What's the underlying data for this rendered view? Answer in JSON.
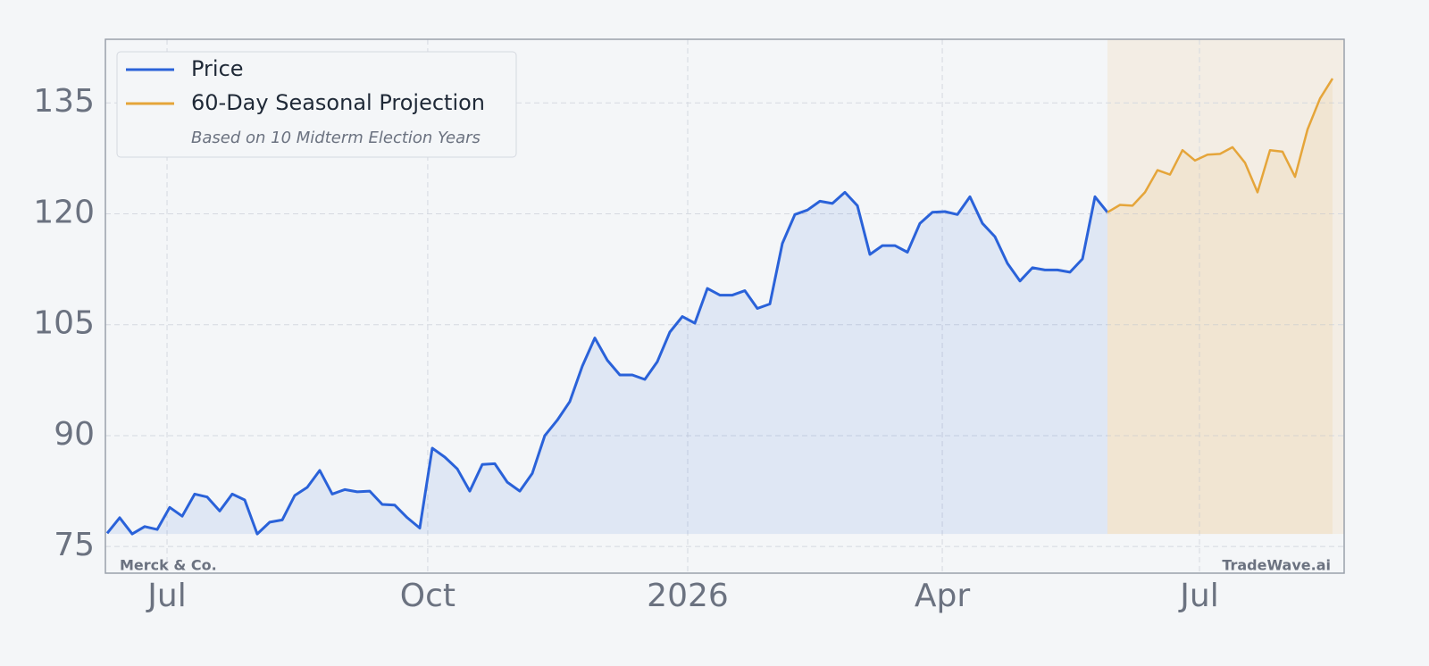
{
  "chart_data": {
    "type": "line",
    "series": [
      {
        "name": "Price",
        "color": "#2a62d9",
        "values": [
          76.8,
          78.9,
          76.7,
          77.7,
          77.3,
          80.3,
          79.1,
          82.1,
          81.7,
          79.8,
          82.1,
          81.3,
          76.7,
          78.3,
          78.6,
          81.9,
          83.0,
          85.3,
          82.1,
          82.7,
          82.4,
          82.5,
          80.7,
          80.6,
          78.9,
          77.5,
          88.3,
          87.1,
          85.5,
          82.5,
          86.1,
          86.2,
          83.7,
          82.5,
          84.9,
          90.0,
          92.1,
          94.6,
          99.4,
          103.2,
          100.2,
          98.2,
          98.2,
          97.6,
          100.0,
          104.0,
          106.1,
          105.2,
          109.9,
          109.0,
          109.0,
          109.6,
          107.2,
          107.8,
          116.0,
          119.9,
          120.5,
          121.7,
          121.4,
          122.9,
          121.1,
          114.5,
          115.7,
          115.7,
          114.8,
          118.7,
          120.2,
          120.3,
          119.9,
          122.3,
          118.7,
          116.9,
          113.3,
          110.9,
          112.7,
          112.4,
          112.4,
          112.1,
          113.9,
          122.3,
          120.2,
          null,
          null,
          null,
          null,
          null,
          null,
          null,
          null,
          null,
          null,
          null,
          null,
          null,
          null,
          null,
          null,
          null,
          null
        ]
      },
      {
        "name": "60-Day Seasonal Projection",
        "color": "#e5a53a",
        "values": [
          null,
          null,
          null,
          null,
          null,
          null,
          null,
          null,
          null,
          null,
          null,
          null,
          null,
          null,
          null,
          null,
          null,
          null,
          null,
          null,
          null,
          null,
          null,
          null,
          null,
          null,
          null,
          null,
          null,
          null,
          null,
          null,
          null,
          null,
          null,
          null,
          null,
          null,
          null,
          null,
          null,
          null,
          null,
          null,
          null,
          null,
          null,
          null,
          null,
          null,
          null,
          null,
          null,
          null,
          null,
          null,
          null,
          null,
          null,
          null,
          null,
          null,
          null,
          null,
          null,
          null,
          null,
          null,
          null,
          null,
          null,
          null,
          null,
          null,
          null,
          null,
          null,
          null,
          null,
          null,
          120.2,
          121.2,
          121.1,
          122.9,
          125.9,
          125.3,
          128.6,
          127.2,
          128.0,
          128.1,
          129.0,
          126.9,
          122.9,
          128.6,
          128.4,
          125.0,
          131.4,
          135.6,
          138.3
        ]
      }
    ],
    "legend_note": "Based on 10 Midterm Election Years",
    "legend": "upper left",
    "company": "Merck & Co.",
    "brand": "TradeWave.ai",
    "xlim": [
      -0.14,
      98.93
    ],
    "xticks": [
      {
        "value": 4.79,
        "label": "Jul"
      },
      {
        "value": 25.64,
        "label": "Oct"
      },
      {
        "value": 46.43,
        "label": "2026"
      },
      {
        "value": 66.79,
        "label": "Apr"
      },
      {
        "value": 87.36,
        "label": "Jul"
      }
    ],
    "ylim": [
      71.4,
      143.6
    ],
    "yticks": [
      75,
      90,
      105,
      120,
      135
    ],
    "grid": true
  }
}
